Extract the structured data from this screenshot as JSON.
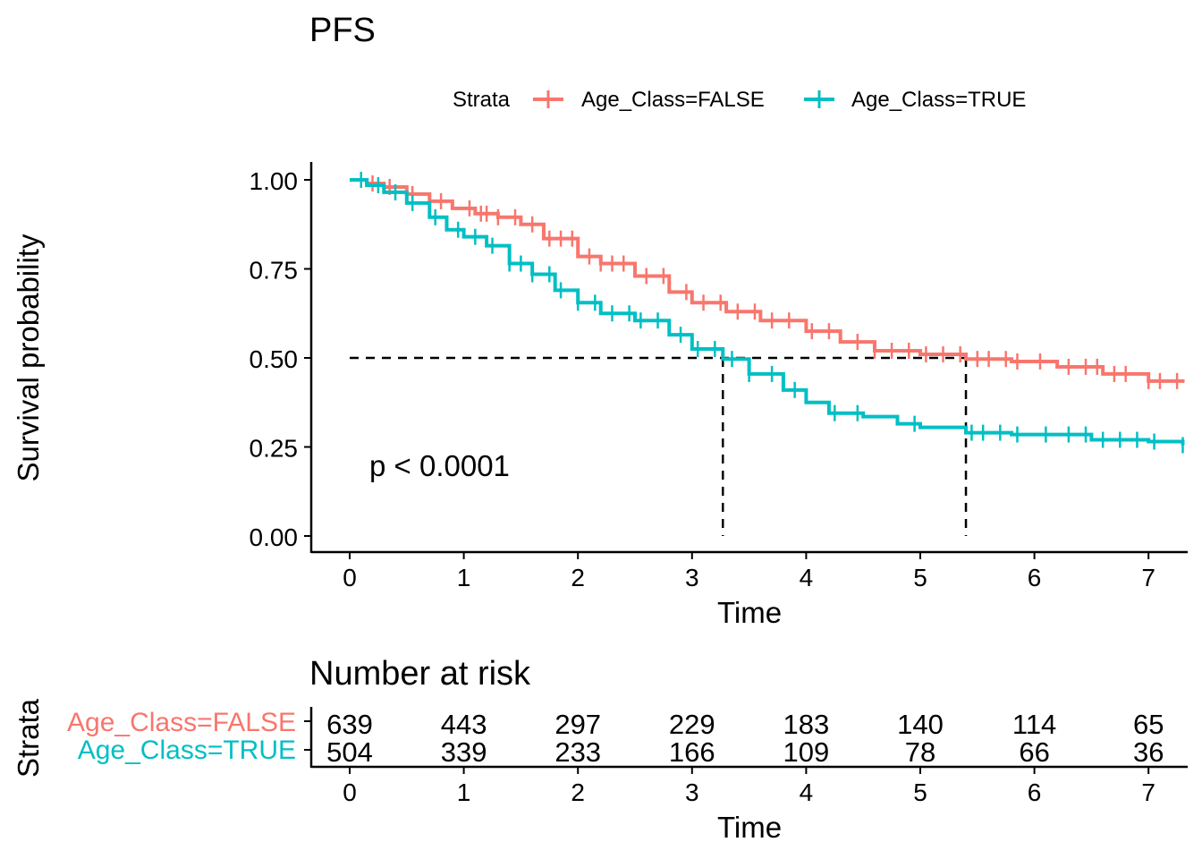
{
  "chart_data": [
    {
      "type": "line",
      "subtype": "kaplan-meier-survival",
      "title": "PFS",
      "xlabel": "Time",
      "ylabel": "Survival probability",
      "xlim": [
        0,
        7.3
      ],
      "ylim": [
        0,
        1
      ],
      "x_ticks": [
        0,
        1,
        2,
        3,
        4,
        5,
        6,
        7
      ],
      "y_ticks": [
        0.0,
        0.25,
        0.5,
        0.75,
        1.0
      ],
      "y_tick_labels": [
        "0.00",
        "0.25",
        "0.50",
        "0.75",
        "1.00"
      ],
      "grid": false,
      "legend": {
        "title": "Strata",
        "position": "top"
      },
      "annotation": "p < 0.0001",
      "median_line": {
        "y": 0.5,
        "x_end": 5.4,
        "drops": [
          3.27,
          5.4
        ]
      },
      "series": [
        {
          "name": "Age_Class=FALSE",
          "color": "#F8766D",
          "points": [
            [
              0,
              1.0
            ],
            [
              0.15,
              0.99
            ],
            [
              0.3,
              0.98
            ],
            [
              0.5,
              0.96
            ],
            [
              0.7,
              0.94
            ],
            [
              0.9,
              0.92
            ],
            [
              1.1,
              0.905
            ],
            [
              1.3,
              0.895
            ],
            [
              1.5,
              0.875
            ],
            [
              1.7,
              0.835
            ],
            [
              2.0,
              0.785
            ],
            [
              2.2,
              0.765
            ],
            [
              2.5,
              0.73
            ],
            [
              2.8,
              0.685
            ],
            [
              3.0,
              0.655
            ],
            [
              3.3,
              0.63
            ],
            [
              3.6,
              0.605
            ],
            [
              4.0,
              0.575
            ],
            [
              4.3,
              0.545
            ],
            [
              4.6,
              0.52
            ],
            [
              5.0,
              0.51
            ],
            [
              5.4,
              0.497
            ],
            [
              5.8,
              0.49
            ],
            [
              6.2,
              0.475
            ],
            [
              6.6,
              0.455
            ],
            [
              7.0,
              0.435
            ],
            [
              7.3,
              0.43
            ]
          ],
          "censor_x": [
            0.2,
            0.35,
            0.55,
            0.8,
            1.05,
            1.15,
            1.2,
            1.3,
            1.45,
            1.6,
            1.75,
            1.85,
            1.95,
            2.1,
            2.2,
            2.3,
            2.4,
            2.6,
            2.75,
            2.95,
            3.1,
            3.25,
            3.4,
            3.55,
            3.7,
            3.85,
            4.05,
            4.2,
            4.45,
            4.6,
            4.75,
            4.9,
            5.05,
            5.2,
            5.35,
            5.5,
            5.6,
            5.75,
            5.85,
            6.05,
            6.3,
            6.45,
            6.55,
            6.7,
            6.8,
            7.0,
            7.1,
            7.25
          ],
          "risk": [
            639,
            443,
            297,
            229,
            183,
            140,
            114,
            65
          ]
        },
        {
          "name": "Age_Class=TRUE",
          "color": "#00BFC4",
          "points": [
            [
              0,
              1.0
            ],
            [
              0.15,
              0.985
            ],
            [
              0.3,
              0.965
            ],
            [
              0.5,
              0.935
            ],
            [
              0.7,
              0.895
            ],
            [
              0.85,
              0.86
            ],
            [
              1.0,
              0.84
            ],
            [
              1.2,
              0.815
            ],
            [
              1.4,
              0.765
            ],
            [
              1.6,
              0.735
            ],
            [
              1.8,
              0.69
            ],
            [
              2.0,
              0.655
            ],
            [
              2.2,
              0.625
            ],
            [
              2.5,
              0.605
            ],
            [
              2.8,
              0.565
            ],
            [
              3.0,
              0.525
            ],
            [
              3.27,
              0.497
            ],
            [
              3.5,
              0.455
            ],
            [
              3.8,
              0.41
            ],
            [
              4.0,
              0.375
            ],
            [
              4.2,
              0.345
            ],
            [
              4.5,
              0.335
            ],
            [
              4.8,
              0.315
            ],
            [
              5.0,
              0.305
            ],
            [
              5.4,
              0.29
            ],
            [
              5.8,
              0.285
            ],
            [
              6.2,
              0.285
            ],
            [
              6.5,
              0.27
            ],
            [
              7.0,
              0.265
            ],
            [
              7.3,
              0.255
            ]
          ],
          "censor_x": [
            0.1,
            0.25,
            0.4,
            0.55,
            0.75,
            0.95,
            1.1,
            1.25,
            1.4,
            1.5,
            1.6,
            1.75,
            1.85,
            2.0,
            2.15,
            2.3,
            2.45,
            2.55,
            2.7,
            2.9,
            3.05,
            3.2,
            3.35,
            3.5,
            3.7,
            3.9,
            4.25,
            4.45,
            4.95,
            5.45,
            5.55,
            5.7,
            5.85,
            6.1,
            6.3,
            6.45,
            6.6,
            6.75,
            6.9,
            7.05,
            7.3
          ],
          "risk": [
            504,
            339,
            233,
            166,
            109,
            78,
            66,
            36
          ]
        }
      ]
    },
    {
      "type": "table",
      "title": "Number at risk",
      "ylabel": "Strata",
      "xlabel": "Time",
      "x_ticks": [
        0,
        1,
        2,
        3,
        4,
        5,
        6,
        7
      ],
      "rows": [
        {
          "label": "Age_Class=FALSE",
          "color": "#F8766D",
          "values": [
            639,
            443,
            297,
            229,
            183,
            140,
            114,
            65
          ]
        },
        {
          "label": "Age_Class=TRUE",
          "color": "#00BFC4",
          "values": [
            504,
            339,
            233,
            166,
            109,
            78,
            66,
            36
          ]
        }
      ]
    }
  ]
}
